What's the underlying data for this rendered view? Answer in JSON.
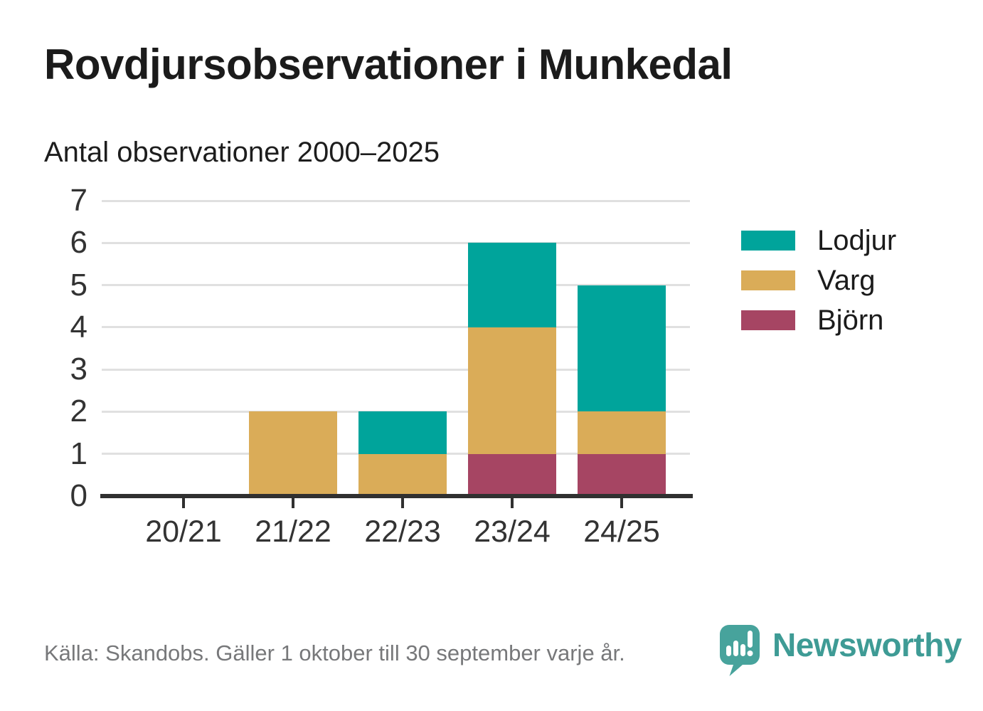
{
  "header": {
    "title": "Rovdjursobservationer i Munkedal",
    "subtitle": "Antal observationer 2000–2025"
  },
  "chart_data": {
    "type": "bar",
    "stacked": true,
    "title": "Rovdjursobservationer i Munkedal",
    "subtitle": "Antal observationer 2000–2025",
    "categories": [
      "20/21",
      "21/22",
      "22/23",
      "23/24",
      "24/25"
    ],
    "series": [
      {
        "name": "Björn",
        "color": "#A64563",
        "values": [
          0,
          0,
          0,
          1,
          1
        ]
      },
      {
        "name": "Varg",
        "color": "#DAAC58",
        "values": [
          0,
          2,
          1,
          3,
          1
        ]
      },
      {
        "name": "Lodjur",
        "color": "#00A49B",
        "values": [
          0,
          0,
          1,
          2,
          3
        ]
      }
    ],
    "stack_totals": [
      0,
      2,
      2,
      6,
      5
    ],
    "ylim": [
      0,
      7
    ],
    "yticks": [
      0,
      1,
      2,
      3,
      4,
      5,
      6,
      7
    ],
    "grid": true,
    "legend_position": "right",
    "legend": [
      {
        "label": "Lodjur",
        "color": "#00A49B"
      },
      {
        "label": "Varg",
        "color": "#DAAC58"
      },
      {
        "label": "Björn",
        "color": "#A64563"
      }
    ]
  },
  "footer": {
    "source": "Källa: Skandobs. Gäller 1 oktober till 30 september varje år.",
    "brand": "Newsworthy"
  },
  "colors": {
    "background": "#FFFFFF",
    "text_dark": "#1B1B1B",
    "tick_text": "#333333",
    "axis": "#303030",
    "gridline": "#E0E0E0",
    "source_text": "#77787A",
    "brand_teal": "#3E9B95",
    "logo_teal": "#47A39C"
  }
}
